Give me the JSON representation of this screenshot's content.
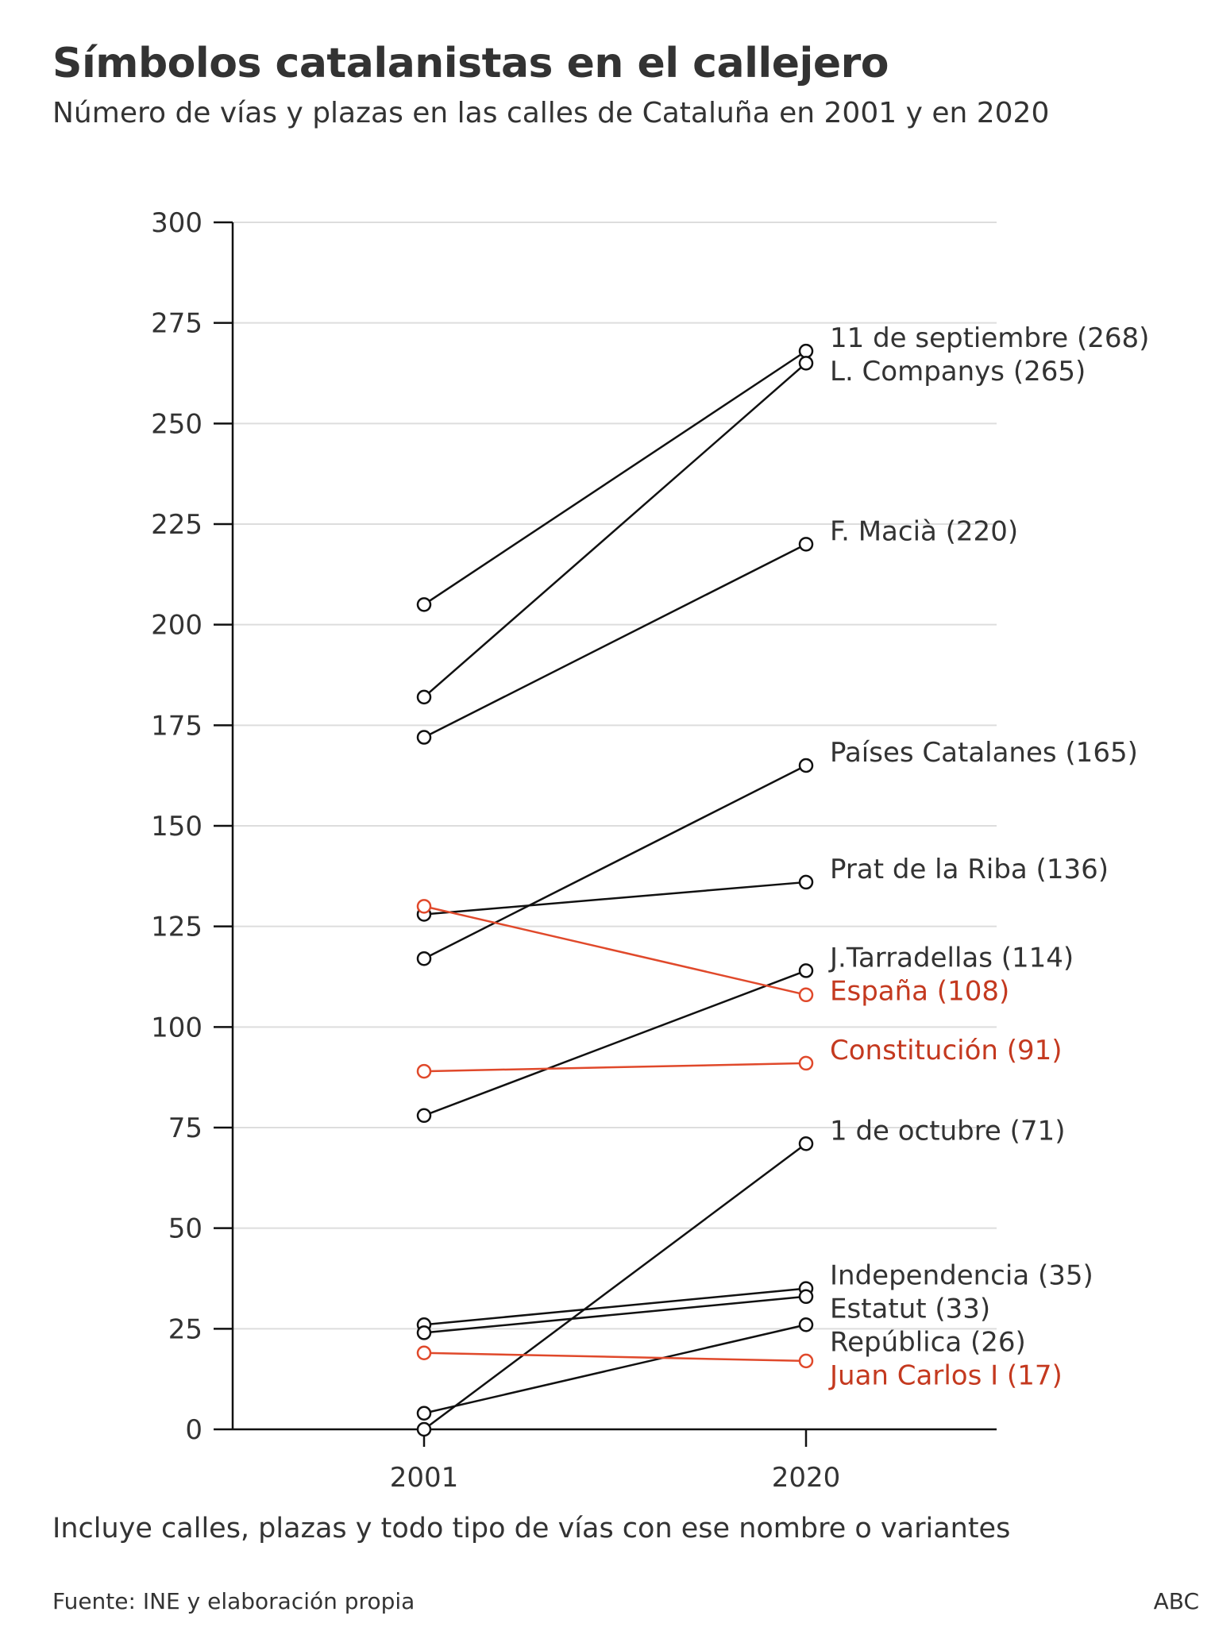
{
  "title": "Símbolos catalanistas en el callejero",
  "subtitle": "Número de vías y plazas en las calles de Cataluña en 2001 y en 2020",
  "note": "Incluye calles, plazas y todo tipo de vías con ese nombre o variantes",
  "source": "Fuente: INE y elaboración propia",
  "brand": "ABC",
  "colors": {
    "highlight": "#e0492b",
    "highlight_text": "#c4391f",
    "default": "#111111",
    "grid": "#dddddd",
    "text": "#333333"
  },
  "chart_data": {
    "type": "line",
    "title": "Símbolos catalanistas en el callejero",
    "xlabel": "",
    "ylabel": "",
    "categories": [
      "2001",
      "2020"
    ],
    "ylim": [
      0,
      300
    ],
    "yticks": [
      0,
      25,
      50,
      75,
      100,
      125,
      150,
      175,
      200,
      225,
      250,
      275,
      300
    ],
    "grid": true,
    "series": [
      {
        "name": "11 de septiembre",
        "label": "11 de septiembre (268)",
        "values": [
          205,
          268
        ],
        "highlight": false
      },
      {
        "name": "L. Companys",
        "label": "L. Companys (265)",
        "values": [
          182,
          265
        ],
        "highlight": false
      },
      {
        "name": "F. Macià",
        "label": "F. Macià (220)",
        "values": [
          172,
          220
        ],
        "highlight": false
      },
      {
        "name": "Países Catalanes",
        "label": "Países Catalanes (165)",
        "values": [
          117,
          165
        ],
        "highlight": false
      },
      {
        "name": "Prat de la Riba",
        "label": "Prat de la Riba (136)",
        "values": [
          128,
          136
        ],
        "highlight": false
      },
      {
        "name": "J.Tarradellas",
        "label": "J.Tarradellas (114)",
        "values": [
          78,
          114
        ],
        "highlight": false
      },
      {
        "name": "España",
        "label": "España (108)",
        "values": [
          130,
          108
        ],
        "highlight": true
      },
      {
        "name": "Constitución",
        "label": "Constitución (91)",
        "values": [
          89,
          91
        ],
        "highlight": true
      },
      {
        "name": "1 de octubre",
        "label": "1 de octubre (71)",
        "values": [
          0,
          71
        ],
        "highlight": false
      },
      {
        "name": "Independencia",
        "label": "Independencia (35)",
        "values": [
          26,
          35
        ],
        "highlight": false
      },
      {
        "name": "Estatut",
        "label": "Estatut (33)",
        "values": [
          24,
          33
        ],
        "highlight": false
      },
      {
        "name": "República",
        "label": "República (26)",
        "values": [
          4,
          26
        ],
        "highlight": false
      },
      {
        "name": "Juan Carlos I",
        "label": "Juan Carlos I (17)",
        "values": [
          19,
          17
        ],
        "highlight": true
      }
    ]
  }
}
